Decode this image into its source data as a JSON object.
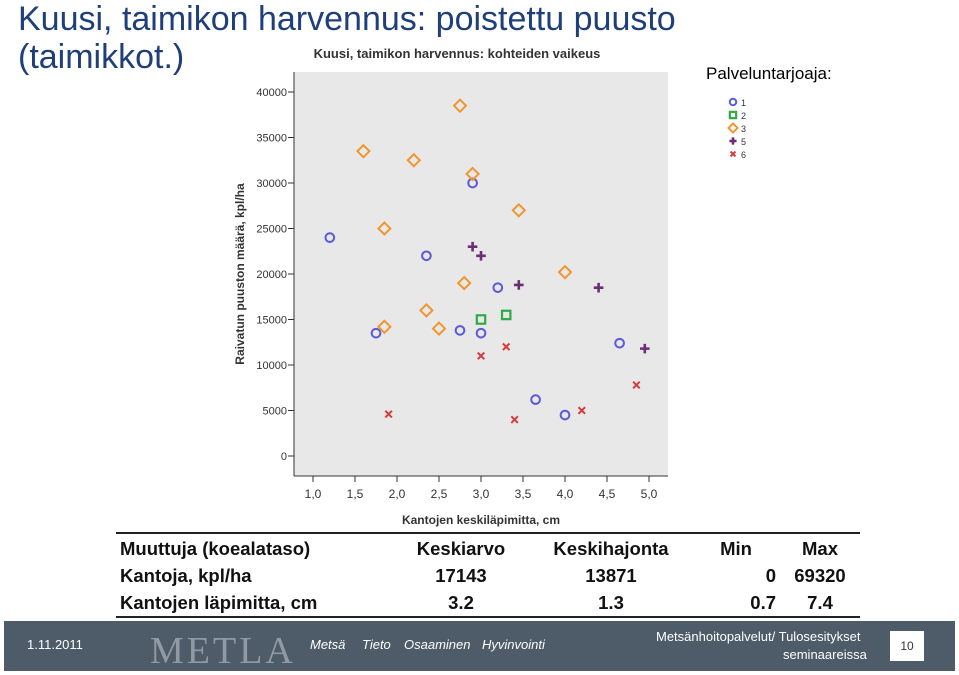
{
  "slide": {
    "title_line1": "Kuusi, taimikon harvennus: poistettu puusto",
    "title_line2": "(taimikkot.)"
  },
  "chart_data": {
    "type": "scatter",
    "title": "Kuusi, taimikon harvennus: kohteiden vaikeus",
    "xlabel": "Kantojen keskiläpimitta, cm",
    "ylabel": "Raivatun puuston määrä, kpl/ha",
    "xlim": [
      1.0,
      5.0
    ],
    "ylim": [
      0,
      40000
    ],
    "xticks": [
      "1,0",
      "1,5",
      "2,0",
      "2,5",
      "3,0",
      "3,5",
      "4,0",
      "4,5",
      "5,0"
    ],
    "yticks": [
      "0",
      "5000",
      "10000",
      "15000",
      "20000",
      "25000",
      "30000",
      "35000",
      "40000"
    ],
    "grid": false,
    "legend_title": "Palveluntarjoaja:",
    "legend_position": "right",
    "series": [
      {
        "name": "1",
        "marker": "circle",
        "color": "#5b5bd6",
        "points": [
          [
            1.2,
            24000
          ],
          [
            1.75,
            13500
          ],
          [
            2.35,
            22000
          ],
          [
            2.9,
            30000
          ],
          [
            2.75,
            13800
          ],
          [
            3.0,
            13500
          ],
          [
            3.2,
            18500
          ],
          [
            3.65,
            6200
          ],
          [
            4.0,
            4500
          ],
          [
            4.65,
            12400
          ]
        ]
      },
      {
        "name": "2",
        "marker": "square",
        "color": "#2eaa46",
        "points": [
          [
            3.0,
            15000
          ],
          [
            3.3,
            15500
          ]
        ]
      },
      {
        "name": "3",
        "marker": "diamond",
        "color": "#f0962e",
        "points": [
          [
            1.6,
            33500
          ],
          [
            2.2,
            32500
          ],
          [
            2.75,
            38500
          ],
          [
            2.9,
            31000
          ],
          [
            1.85,
            25000
          ],
          [
            3.45,
            27000
          ],
          [
            2.8,
            19000
          ],
          [
            4.0,
            20200
          ],
          [
            2.35,
            16000
          ],
          [
            1.85,
            14200
          ],
          [
            2.5,
            14000
          ]
        ]
      },
      {
        "name": "5",
        "marker": "plus",
        "color": "#6b2d75",
        "points": [
          [
            2.9,
            23000
          ],
          [
            3.0,
            22000
          ],
          [
            3.45,
            18800
          ],
          [
            4.4,
            18500
          ],
          [
            4.95,
            11800
          ]
        ]
      },
      {
        "name": "6",
        "marker": "x",
        "color": "#d63a3a",
        "points": [
          [
            1.9,
            4600
          ],
          [
            3.0,
            11000
          ],
          [
            3.3,
            12000
          ],
          [
            3.4,
            4000
          ],
          [
            4.2,
            5000
          ],
          [
            4.85,
            7800
          ]
        ]
      }
    ]
  },
  "stats_table": {
    "headers": [
      "Muuttuja (koealataso)",
      "Keskiarvo",
      "Keskihajonta",
      "Min",
      "Max"
    ],
    "rows": [
      [
        "Kantoja, kpl/ha",
        "17143",
        "13871",
        "0",
        "69320"
      ],
      [
        "Kantojen läpimitta, cm",
        "3.2",
        "1.3",
        "0.7",
        "7.4"
      ]
    ]
  },
  "footer": {
    "date": "1.11.2011",
    "logo": "METLA",
    "tags": [
      "Metsä",
      "Tieto",
      "Osaaminen",
      "Hyvinvointi"
    ],
    "right_line1": "Metsänhoitopalvelut/ Tulosesitykset",
    "right_line2": "seminaareissa",
    "page_number": "10"
  }
}
